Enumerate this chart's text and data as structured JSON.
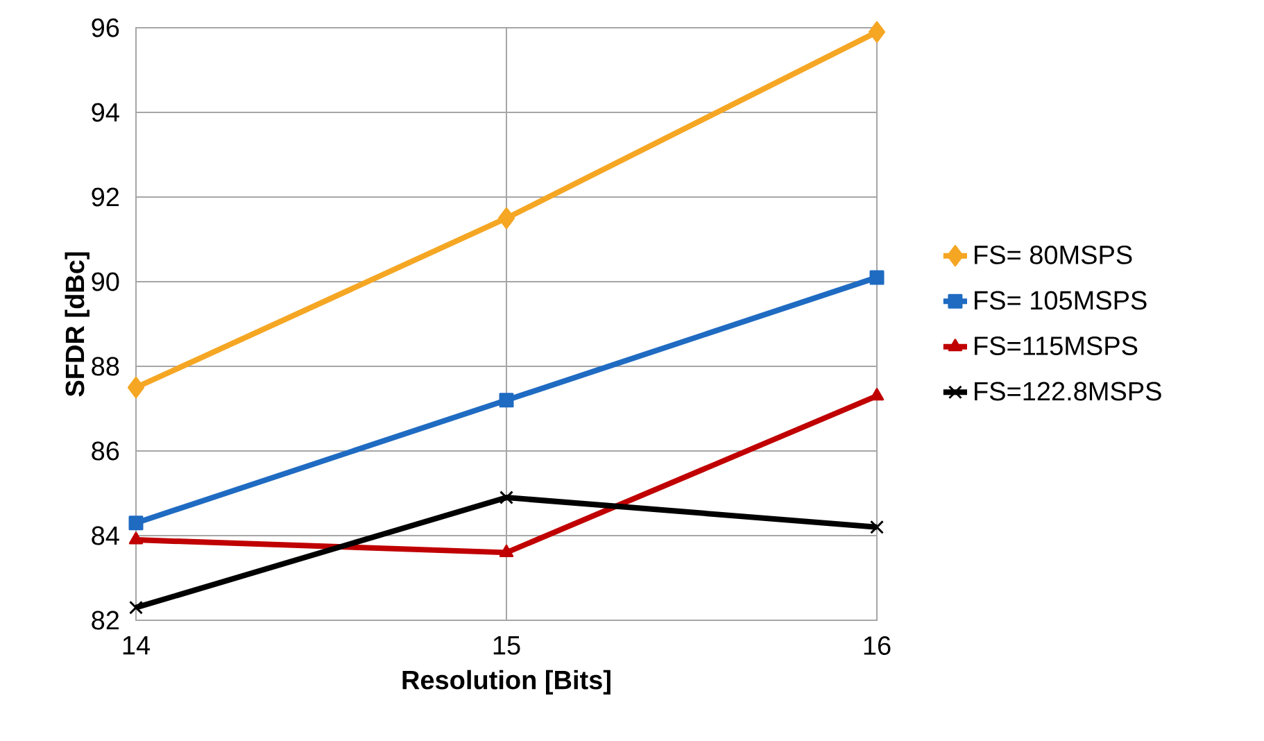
{
  "chart_data": {
    "type": "line",
    "xlabel": "Resolution [Bits]",
    "ylabel": "SFDR [dBc]",
    "x": [
      14,
      15,
      16
    ],
    "xlim": [
      14,
      16
    ],
    "ylim": [
      82,
      96
    ],
    "xticks": [
      14,
      15,
      16
    ],
    "yticks": [
      82,
      84,
      86,
      88,
      90,
      92,
      94,
      96
    ],
    "grid": true,
    "legend": "right",
    "series": [
      {
        "name": "FS= 80MSPS",
        "color": "#f5a623",
        "marker": "diamond",
        "values": [
          87.5,
          91.5,
          95.9
        ]
      },
      {
        "name": "FS= 105MSPS",
        "color": "#1f6bc2",
        "marker": "square",
        "values": [
          84.3,
          87.2,
          90.1
        ]
      },
      {
        "name": "FS=115MSPS",
        "color": "#c00000",
        "marker": "triangle",
        "values": [
          83.9,
          83.6,
          87.3
        ]
      },
      {
        "name": "FS=122.8MSPS",
        "color": "#000000",
        "marker": "cross",
        "values": [
          82.3,
          84.9,
          84.2
        ]
      }
    ]
  }
}
